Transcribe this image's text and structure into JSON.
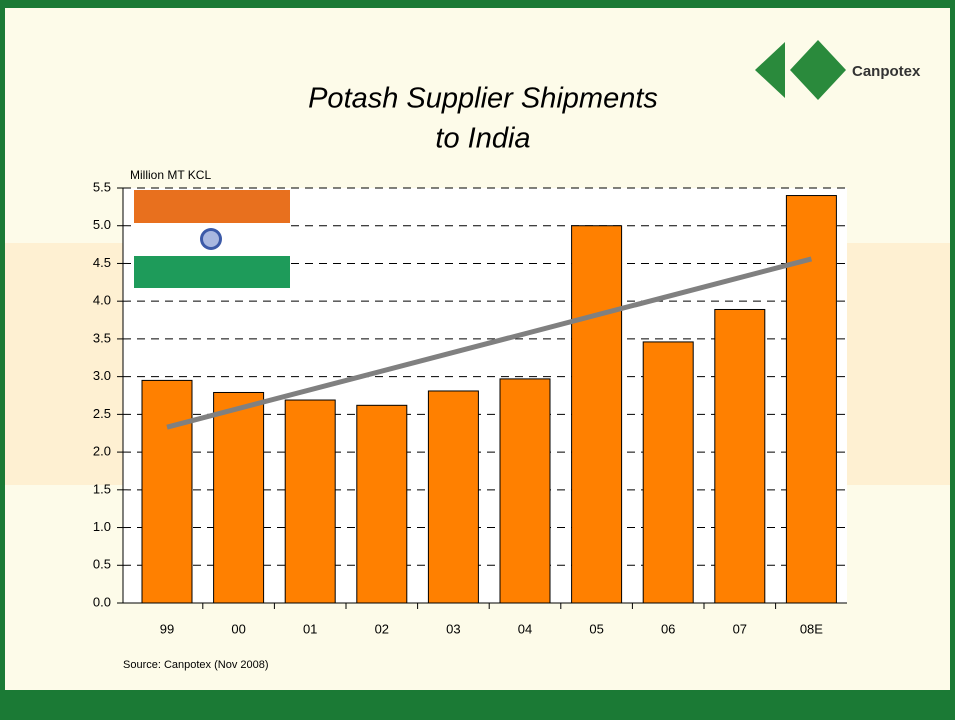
{
  "brand": "Canpotex",
  "chart_data": {
    "type": "bar",
    "title": [
      "Potash Supplier Shipments",
      "to India"
    ],
    "y_label": "Million MT KCL",
    "source": "Source: Canpotex (Nov 2008)",
    "categories": [
      "99",
      "00",
      "01",
      "02",
      "03",
      "04",
      "05",
      "06",
      "07",
      "08E"
    ],
    "values": [
      2.95,
      2.79,
      2.69,
      2.62,
      2.81,
      2.97,
      5.0,
      3.46,
      3.89,
      5.4
    ],
    "color": "#ff8000",
    "trendline": {
      "color": "#808080",
      "values": [
        2.33,
        4.56
      ]
    },
    "ylim": [
      0,
      5.5
    ],
    "yticks": [
      {
        "value": 0,
        "label": "0.0"
      },
      0.5,
      {
        "value": 1,
        "label": "1.0"
      },
      1.5,
      {
        "value": 2,
        "label": "2.0"
      },
      2.5,
      {
        "value": 3,
        "label": "3.0"
      },
      3.5,
      {
        "value": 4,
        "label": "4.0"
      },
      4.5,
      {
        "value": 5,
        "label": "5.0"
      },
      5.5
    ],
    "grid": true
  }
}
